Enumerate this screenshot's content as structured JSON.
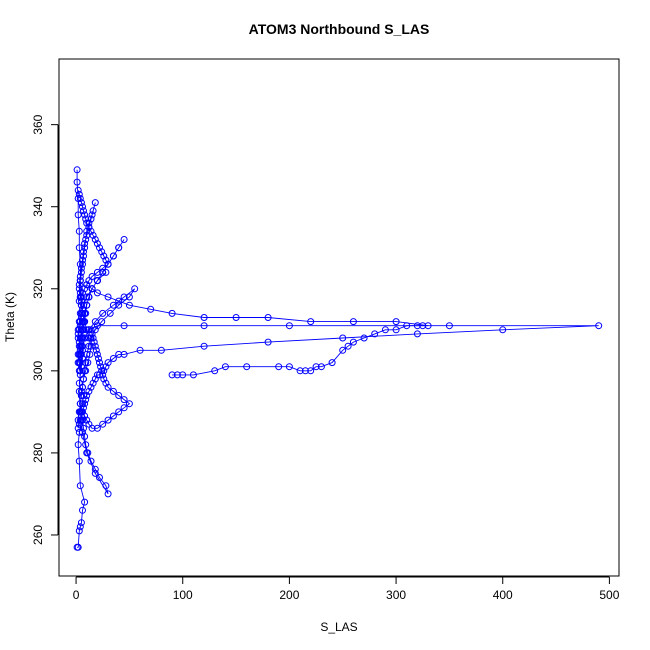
{
  "chart_data": {
    "type": "scatter",
    "title": "ATOM3 Northbound S_LAS",
    "xlabel": "S_LAS",
    "ylabel": "Theta (K)",
    "xlim": [
      -16,
      509
    ],
    "ylim": [
      250,
      376
    ],
    "xticks": [
      0,
      100,
      200,
      300,
      400,
      500
    ],
    "yticks": [
      260,
      280,
      300,
      320,
      340,
      360
    ],
    "grid": false,
    "legend": "none",
    "series_color": "#0000ff",
    "marker": "open-circle",
    "connected": true,
    "series": [
      {
        "x": [
          1,
          2,
          3,
          4,
          5,
          6,
          8,
          4,
          3,
          2,
          3,
          5,
          4,
          6,
          7,
          5,
          3,
          4,
          5,
          6,
          4,
          3,
          2,
          4,
          5,
          6,
          5,
          4,
          3,
          4,
          5,
          6,
          7,
          8,
          10,
          12,
          14,
          16,
          18,
          15,
          12,
          10,
          9,
          8,
          7,
          6,
          5,
          4,
          3,
          4,
          5,
          6,
          8,
          10,
          12,
          14,
          13,
          11,
          9,
          7,
          6,
          5,
          4,
          5,
          6,
          7,
          8,
          9,
          11,
          14,
          18,
          22,
          28,
          30,
          18,
          10,
          6,
          4,
          3,
          4,
          6,
          8,
          12,
          20,
          45,
          120,
          200,
          350,
          490,
          400,
          320,
          250,
          180,
          120,
          80,
          60,
          45,
          40,
          35,
          30,
          28,
          26,
          24,
          22,
          20,
          18,
          16,
          14,
          12,
          10,
          9,
          8,
          7,
          6,
          5,
          4,
          3,
          2,
          2,
          3,
          4,
          5,
          6,
          7,
          8,
          9,
          10,
          12,
          14,
          18,
          24,
          32,
          40,
          50,
          55,
          45,
          35,
          25,
          18,
          12,
          8,
          6,
          5,
          4,
          3,
          3,
          4,
          5,
          6,
          7,
          8,
          9,
          10,
          12,
          15,
          20,
          25,
          30,
          35,
          40,
          45,
          40,
          35,
          30,
          25,
          20,
          15,
          12,
          10,
          8,
          6,
          5,
          4,
          3,
          2,
          2,
          3,
          4,
          5,
          6,
          7,
          8,
          10,
          12,
          15,
          20,
          28,
          20,
          15,
          10,
          7,
          5,
          4,
          3,
          2,
          2,
          3,
          4,
          5,
          5,
          4,
          4,
          3,
          3,
          2,
          2,
          1,
          1
        ],
        "y": [
          257,
          257,
          261,
          262,
          263,
          266,
          268,
          272,
          278,
          282,
          285,
          288,
          290,
          292,
          294,
          295,
          297,
          299,
          301,
          303,
          305,
          307,
          309,
          311,
          313,
          315,
          317,
          319,
          321,
          323,
          325,
          327,
          329,
          331,
          333,
          335,
          337,
          339,
          341,
          338,
          336,
          334,
          332,
          330,
          328,
          326,
          324,
          322,
          320,
          318,
          316,
          314,
          312,
          310,
          308,
          306,
          304,
          302,
          300,
          298,
          296,
          294,
          292,
          290,
          288,
          286,
          284,
          282,
          280,
          278,
          276,
          274,
          272,
          270,
          275,
          280,
          285,
          290,
          295,
          300,
          305,
          308,
          310,
          311,
          311,
          311,
          311,
          311,
          311,
          310,
          309,
          308,
          307,
          306,
          305,
          305,
          304,
          304,
          303,
          302,
          301,
          300,
          300,
          299,
          299,
          298,
          297,
          296,
          295,
          294,
          293,
          292,
          291,
          290,
          289,
          288,
          287,
          286,
          288,
          290,
          292,
          294,
          296,
          298,
          300,
          302,
          304,
          306,
          308,
          310,
          312,
          314,
          316,
          318,
          320,
          318,
          316,
          314,
          312,
          310,
          308,
          306,
          304,
          302,
          300,
          302,
          304,
          306,
          308,
          310,
          312,
          314,
          316,
          318,
          320,
          322,
          324,
          326,
          328,
          330,
          332,
          330,
          328,
          326,
          324,
          322,
          320,
          318,
          316,
          314,
          312,
          310,
          308,
          306,
          304,
          302,
          304,
          306,
          308,
          310,
          312,
          314,
          316,
          318,
          320,
          322,
          324,
          322,
          320,
          318,
          316,
          314,
          312,
          310,
          308,
          310,
          312,
          314,
          316,
          318,
          322,
          326,
          330,
          334,
          338,
          342,
          346,
          349
        ]
      },
      {
        "x": [
          90,
          95,
          100,
          110,
          130,
          140,
          160,
          190,
          200,
          210,
          215,
          220,
          225,
          230,
          240,
          250,
          255,
          260,
          270,
          280,
          290,
          300,
          310,
          320,
          325,
          330,
          300,
          260,
          220,
          180,
          150,
          120,
          90,
          70,
          50,
          40,
          30,
          20,
          15,
          10
        ],
        "y": [
          299,
          299,
          299,
          299,
          300,
          301,
          301,
          301,
          301,
          300,
          300,
          300,
          301,
          301,
          302,
          305,
          306,
          307,
          308,
          309,
          310,
          310,
          311,
          311,
          311,
          311,
          312,
          312,
          312,
          313,
          313,
          313,
          314,
          315,
          316,
          317,
          318,
          319,
          320,
          321
        ]
      },
      {
        "x": [
          5,
          8,
          10,
          12,
          15,
          20,
          25,
          30,
          35,
          40,
          45,
          50,
          45,
          40,
          35,
          30,
          28,
          26,
          25,
          24,
          23,
          22,
          21,
          20,
          19,
          18,
          17,
          16,
          15,
          14
        ],
        "y": [
          290,
          289,
          288,
          287,
          286,
          286,
          287,
          288,
          289,
          290,
          291,
          292,
          293,
          294,
          295,
          296,
          297,
          298,
          299,
          300,
          301,
          302,
          303,
          304,
          305,
          306,
          307,
          308,
          309,
          310
        ]
      },
      {
        "x": [
          2,
          3,
          4,
          5,
          6,
          7,
          8,
          9,
          10,
          12,
          14,
          16,
          18,
          20,
          22,
          24,
          26,
          28,
          30,
          25,
          20,
          15,
          12,
          10,
          8,
          6,
          4,
          3
        ],
        "y": [
          344,
          343,
          342,
          341,
          340,
          339,
          338,
          337,
          336,
          335,
          334,
          333,
          332,
          331,
          330,
          329,
          328,
          327,
          326,
          325,
          324,
          323,
          322,
          321,
          320,
          319,
          318,
          317
        ]
      }
    ]
  }
}
